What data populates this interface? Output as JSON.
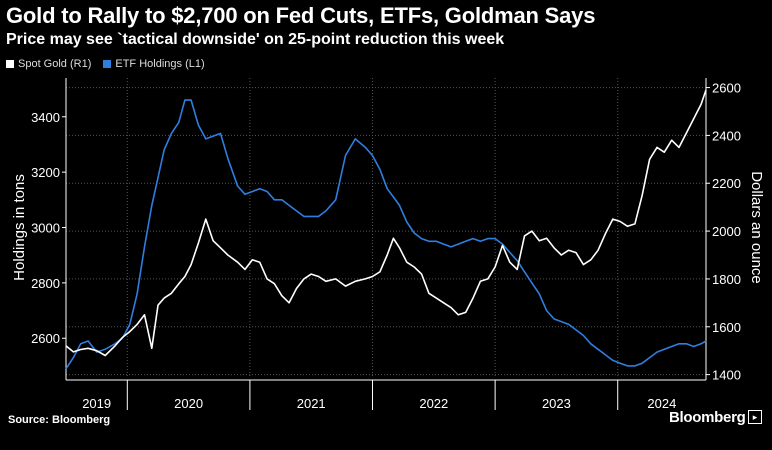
{
  "chart_data": {
    "type": "line",
    "title": "Gold to Rally to $2,700 on Fed Cuts, ETFs, Goldman Says",
    "subtitle": "Price may see `tactical downside' on 25-point reduction this week",
    "source": "Source: Bloomberg",
    "brand": "Bloomberg",
    "grid": true,
    "legend_position": "top-left",
    "x_years": [
      "2019",
      "2020",
      "2021",
      "2022",
      "2023",
      "2024"
    ],
    "x_range": [
      2019.5,
      2024.72
    ],
    "y_left": {
      "label": "Holdings in tons",
      "range": [
        2460,
        3540
      ],
      "ticks": [
        2600,
        2800,
        3000,
        3200,
        3400
      ]
    },
    "y_right": {
      "label": "Dollars an ounce",
      "range": [
        1390,
        2640
      ],
      "ticks": [
        1400,
        1600,
        1800,
        2000,
        2200,
        2400,
        2600
      ]
    },
    "series": [
      {
        "name": "Spot Gold (R1)",
        "axis": "right",
        "color": "#ffffff",
        "x": [
          2019.5,
          2019.56,
          2019.62,
          2019.68,
          2019.75,
          2019.82,
          2019.9,
          2019.96,
          2020.02,
          2020.08,
          2020.14,
          2020.2,
          2020.25,
          2020.3,
          2020.36,
          2020.42,
          2020.47,
          2020.52,
          2020.58,
          2020.64,
          2020.7,
          2020.76,
          2020.82,
          2020.9,
          2020.96,
          2021.02,
          2021.08,
          2021.14,
          2021.2,
          2021.26,
          2021.32,
          2021.38,
          2021.44,
          2021.5,
          2021.56,
          2021.62,
          2021.7,
          2021.78,
          2021.86,
          2021.94,
          2022.0,
          2022.06,
          2022.12,
          2022.17,
          2022.22,
          2022.28,
          2022.34,
          2022.4,
          2022.46,
          2022.52,
          2022.58,
          2022.64,
          2022.7,
          2022.76,
          2022.82,
          2022.88,
          2022.94,
          2023.0,
          2023.06,
          2023.12,
          2023.18,
          2023.24,
          2023.3,
          2023.36,
          2023.42,
          2023.48,
          2023.54,
          2023.6,
          2023.66,
          2023.72,
          2023.78,
          2023.84,
          2023.9,
          2023.96,
          2024.02,
          2024.08,
          2024.14,
          2024.2,
          2024.26,
          2024.32,
          2024.38,
          2024.44,
          2024.5,
          2024.56,
          2024.62,
          2024.68,
          2024.72
        ],
        "values": [
          1520,
          1495,
          1505,
          1510,
          1500,
          1480,
          1520,
          1555,
          1580,
          1610,
          1650,
          1510,
          1690,
          1720,
          1740,
          1780,
          1810,
          1860,
          1950,
          2050,
          1960,
          1930,
          1900,
          1870,
          1840,
          1880,
          1870,
          1800,
          1780,
          1730,
          1700,
          1760,
          1800,
          1820,
          1810,
          1790,
          1800,
          1770,
          1790,
          1800,
          1810,
          1830,
          1900,
          1970,
          1930,
          1870,
          1850,
          1820,
          1740,
          1720,
          1700,
          1680,
          1650,
          1660,
          1720,
          1790,
          1800,
          1850,
          1940,
          1870,
          1840,
          1980,
          2000,
          1960,
          1970,
          1930,
          1900,
          1920,
          1910,
          1860,
          1880,
          1920,
          1990,
          2050,
          2040,
          2020,
          2030,
          2150,
          2300,
          2350,
          2330,
          2380,
          2350,
          2410,
          2470,
          2530,
          2590
        ]
      },
      {
        "name": "ETF Holdings (L1)",
        "axis": "left",
        "color": "#2f7ee0",
        "x": [
          2019.5,
          2019.56,
          2019.62,
          2019.68,
          2019.75,
          2019.82,
          2019.9,
          2019.96,
          2020.02,
          2020.08,
          2020.14,
          2020.2,
          2020.25,
          2020.3,
          2020.36,
          2020.42,
          2020.47,
          2020.52,
          2020.58,
          2020.64,
          2020.7,
          2020.76,
          2020.82,
          2020.9,
          2020.96,
          2021.02,
          2021.08,
          2021.14,
          2021.2,
          2021.26,
          2021.32,
          2021.38,
          2021.44,
          2021.5,
          2021.56,
          2021.62,
          2021.7,
          2021.78,
          2021.86,
          2021.94,
          2022.0,
          2022.06,
          2022.12,
          2022.17,
          2022.22,
          2022.28,
          2022.34,
          2022.4,
          2022.46,
          2022.52,
          2022.58,
          2022.64,
          2022.7,
          2022.76,
          2022.82,
          2022.88,
          2022.94,
          2023.0,
          2023.06,
          2023.12,
          2023.18,
          2023.24,
          2023.3,
          2023.36,
          2023.42,
          2023.48,
          2023.54,
          2023.6,
          2023.66,
          2023.72,
          2023.78,
          2023.84,
          2023.9,
          2023.96,
          2024.02,
          2024.08,
          2024.14,
          2024.2,
          2024.26,
          2024.32,
          2024.38,
          2024.44,
          2024.5,
          2024.56,
          2024.62,
          2024.68,
          2024.72
        ],
        "values": [
          2490,
          2530,
          2580,
          2590,
          2550,
          2560,
          2580,
          2600,
          2650,
          2760,
          2930,
          3080,
          3180,
          3280,
          3340,
          3380,
          3460,
          3460,
          3370,
          3320,
          3330,
          3340,
          3250,
          3150,
          3120,
          3130,
          3140,
          3130,
          3100,
          3100,
          3080,
          3060,
          3040,
          3040,
          3040,
          3060,
          3100,
          3260,
          3320,
          3290,
          3260,
          3210,
          3140,
          3110,
          3080,
          3020,
          2980,
          2960,
          2950,
          2950,
          2940,
          2930,
          2940,
          2950,
          2960,
          2950,
          2960,
          2960,
          2940,
          2910,
          2880,
          2840,
          2800,
          2760,
          2700,
          2670,
          2660,
          2650,
          2630,
          2610,
          2580,
          2560,
          2540,
          2520,
          2510,
          2500,
          2500,
          2510,
          2530,
          2550,
          2560,
          2570,
          2580,
          2580,
          2570,
          2580,
          2590
        ]
      }
    ]
  }
}
